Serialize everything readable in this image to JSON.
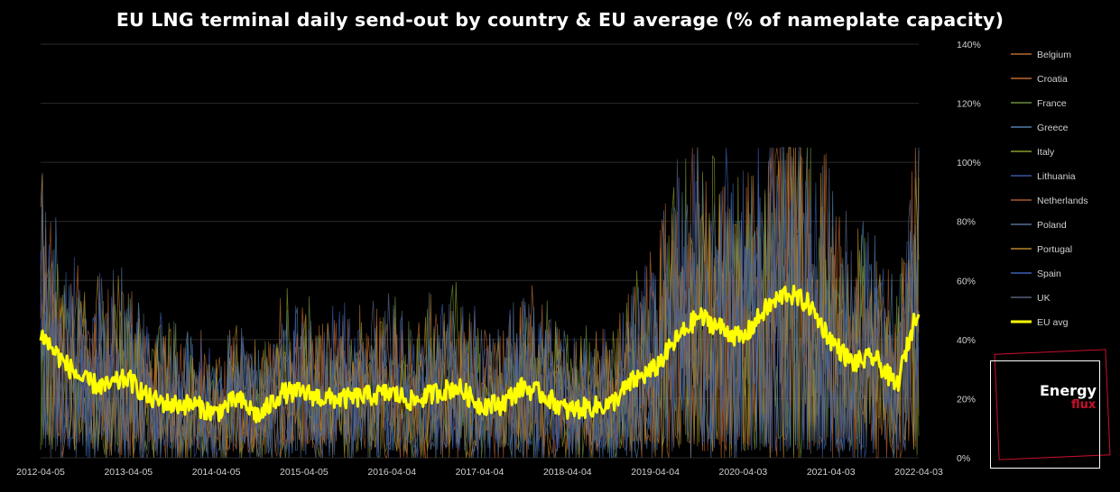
{
  "chart_data": {
    "type": "line",
    "title": "EU LNG terminal daily send-out by country & EU average (% of nameplate capacity)",
    "xlabel": "",
    "ylabel": "",
    "x_range": [
      "2012-04-05",
      "2022-04-03"
    ],
    "x_tick_labels": [
      "2012-04-05",
      "2013-04-05",
      "2014-04-05",
      "2015-04-05",
      "2016-04-04",
      "2017-04-04",
      "2018-04-04",
      "2019-04-04",
      "2020-04-03",
      "2021-04-03",
      "2022-04-03"
    ],
    "ylim": [
      0,
      140
    ],
    "y_tick_labels": [
      "0%",
      "20%",
      "40%",
      "60%",
      "80%",
      "100%",
      "120%",
      "140%"
    ],
    "y_axis_side": "right",
    "grid": true,
    "legend_placement": "right",
    "series": [
      {
        "name": "Belgium",
        "color": "#b56a32"
      },
      {
        "name": "Croatia",
        "color": "#c0682e"
      },
      {
        "name": "France",
        "color": "#6b8d3a"
      },
      {
        "name": "Greece",
        "color": "#4f7fa8"
      },
      {
        "name": "Italy",
        "color": "#8a9a2a"
      },
      {
        "name": "Lithuania",
        "color": "#3a55a0"
      },
      {
        "name": "Netherlands",
        "color": "#a65a2a"
      },
      {
        "name": "Poland",
        "color": "#566f96"
      },
      {
        "name": "Portugal",
        "color": "#b8862a"
      },
      {
        "name": "Spain",
        "color": "#3a60b8"
      },
      {
        "name": "UK",
        "color": "#56607a"
      },
      {
        "name": "EU avg",
        "color": "#ffff00",
        "x": [
          "2012-04-05",
          "2012-07-01",
          "2012-10-01",
          "2013-01-01",
          "2013-04-01",
          "2013-07-01",
          "2013-10-01",
          "2014-01-01",
          "2014-04-01",
          "2014-07-01",
          "2014-10-01",
          "2015-01-01",
          "2015-04-01",
          "2015-07-01",
          "2015-10-01",
          "2016-01-01",
          "2016-04-01",
          "2016-07-01",
          "2016-10-01",
          "2017-01-01",
          "2017-04-01",
          "2017-07-01",
          "2017-10-01",
          "2018-01-01",
          "2018-04-01",
          "2018-07-01",
          "2018-10-01",
          "2019-01-01",
          "2019-04-01",
          "2019-07-01",
          "2019-10-01",
          "2020-01-01",
          "2020-04-01",
          "2020-07-01",
          "2020-10-01",
          "2021-01-01",
          "2021-04-01",
          "2021-07-01",
          "2021-10-01",
          "2022-01-01",
          "2022-04-03"
        ],
        "values": [
          42,
          33,
          26,
          24,
          27,
          20,
          18,
          18,
          15,
          20,
          14,
          22,
          22,
          20,
          20,
          21,
          22,
          19,
          22,
          24,
          18,
          18,
          24,
          21,
          16,
          17,
          18,
          26,
          30,
          40,
          48,
          44,
          40,
          50,
          56,
          52,
          40,
          32,
          34,
          24,
          52
        ]
      }
    ]
  },
  "branding": {
    "logo_line1": "Energy",
    "logo_line2": "flux",
    "accent_color": "#c8102e"
  }
}
